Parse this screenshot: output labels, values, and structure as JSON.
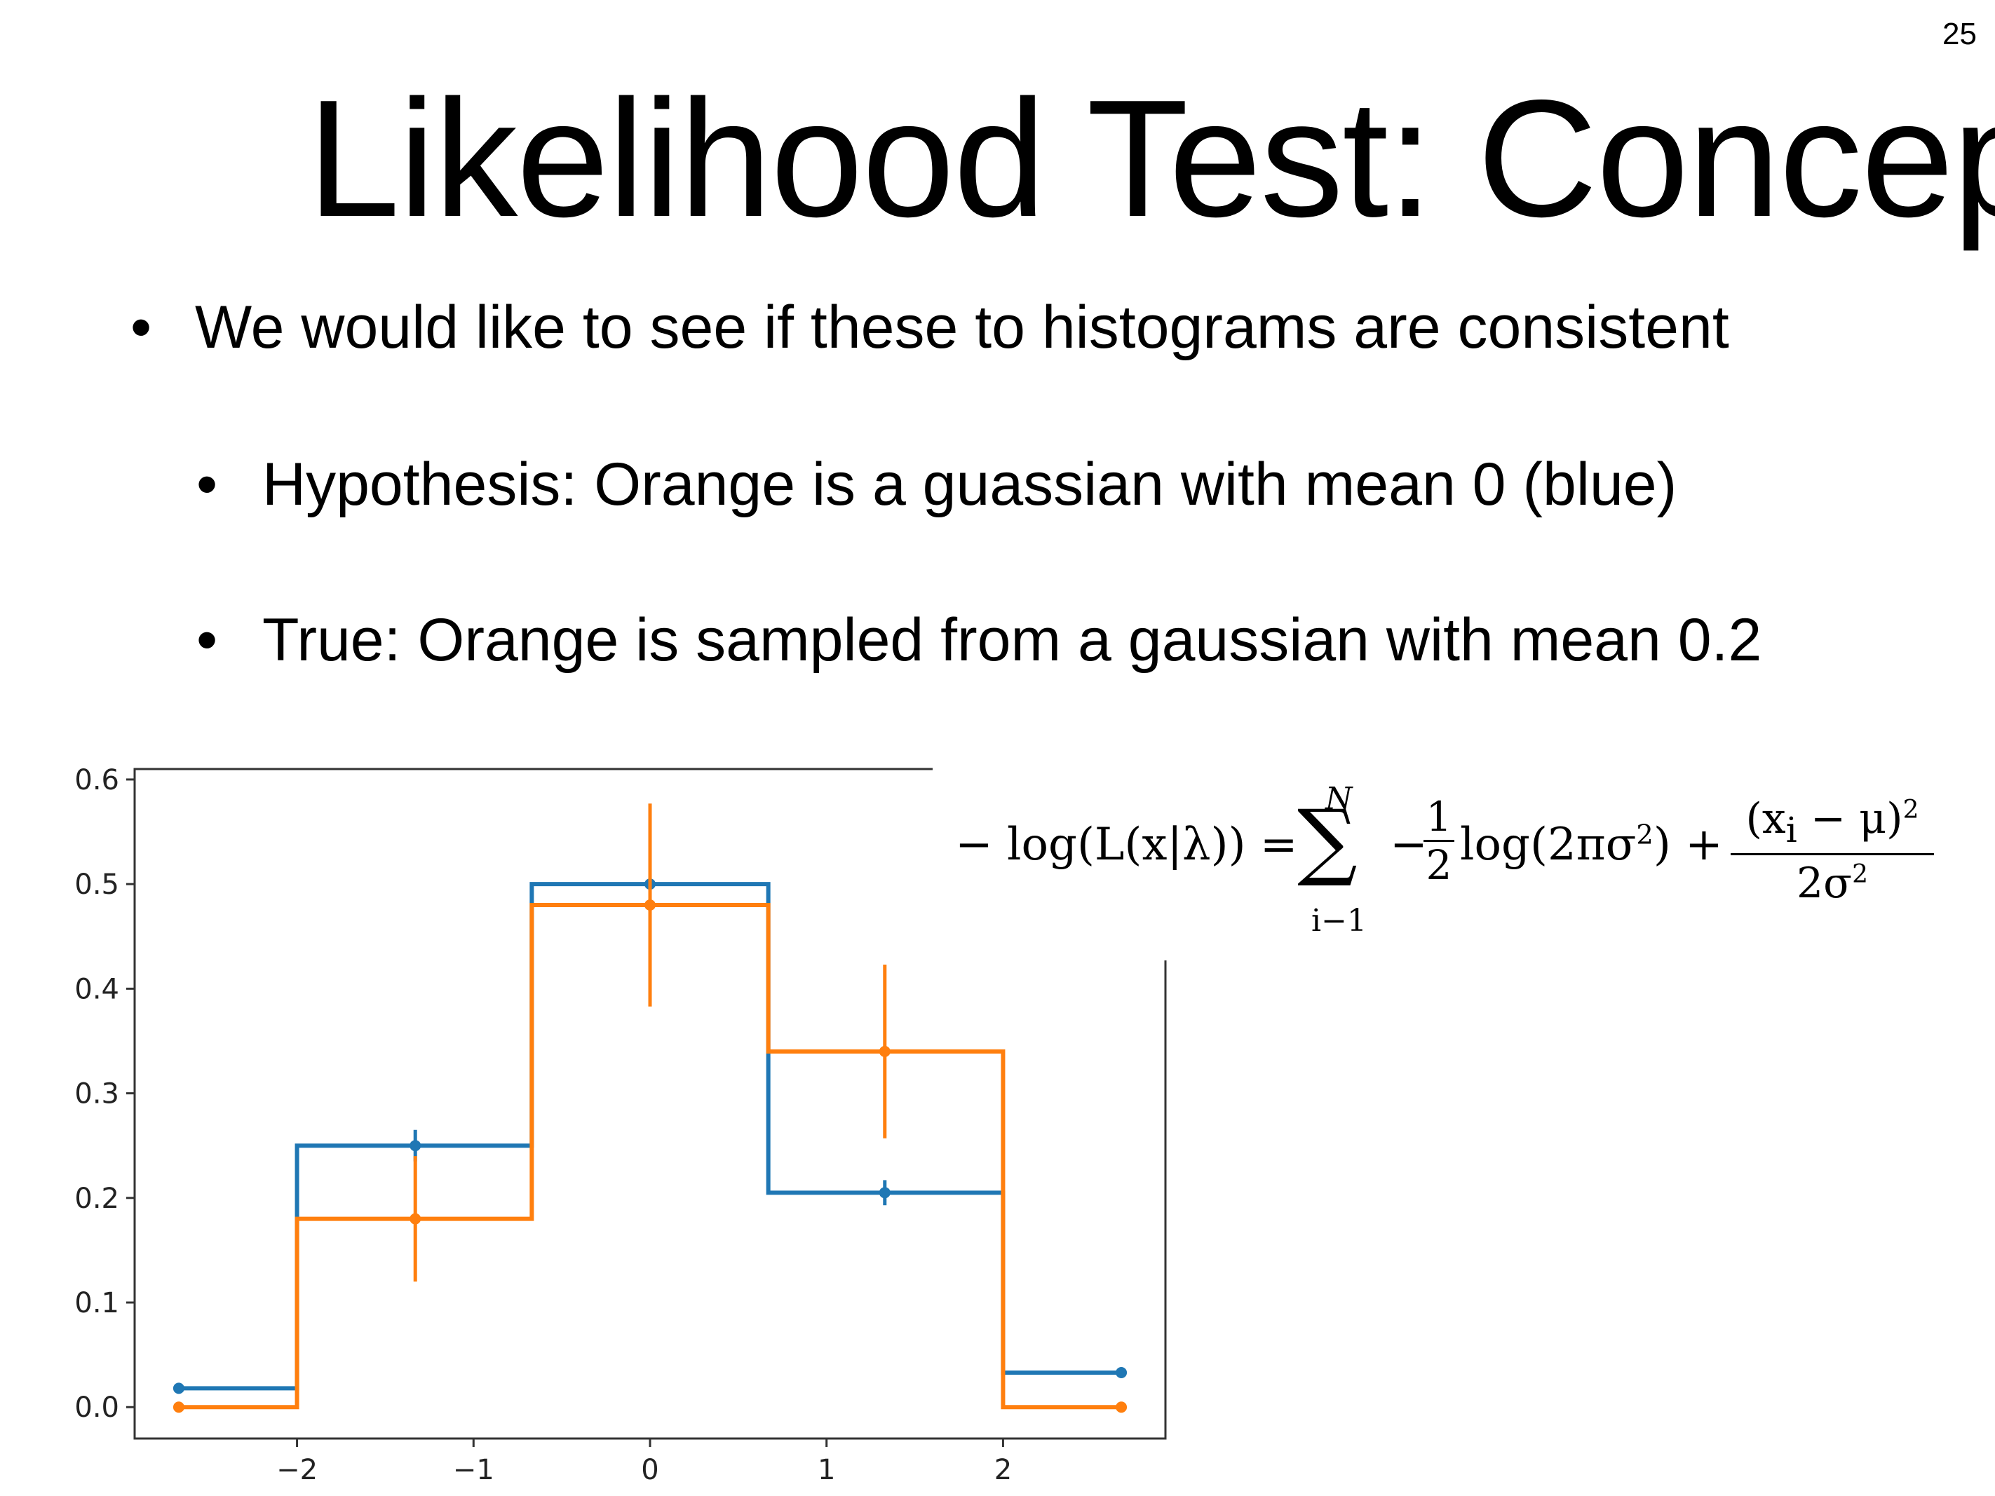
{
  "slide": {
    "page_number": "25",
    "title": "Likelihood Test: Concept",
    "bullets": [
      "We would like to see if these to histograms are consistent",
      "Hypothesis: Orange is a guassian with mean 0 (blue)",
      "True: Orange is sampled from a gaussian with mean 0.2"
    ],
    "bullet_glyph": "•"
  },
  "formula": {
    "lhs": "− log(L(x|λ)) =",
    "sum_upper": "N",
    "sum_lower": "i−1",
    "minus": "−",
    "half_num": "1",
    "half_den": "2",
    "log_term": "log(2πσ",
    "log_sup": "2",
    "log_close": ") +",
    "frac_num": "(x",
    "frac_num_sub": "i",
    "frac_num_rest": " − μ)",
    "frac_num_sup": "2",
    "frac_den": "2σ",
    "frac_den_sup": "2"
  },
  "chart_data": {
    "type": "histogram",
    "x_ticks": [
      -2,
      -1,
      0,
      1,
      2
    ],
    "x_tick_labels": [
      "−2",
      "−1",
      "0",
      "1",
      "2"
    ],
    "y_ticks": [
      0.0,
      0.1,
      0.2,
      0.3,
      0.4,
      0.5,
      0.6
    ],
    "y_tick_labels": [
      "0.0",
      "0.1",
      "0.2",
      "0.3",
      "0.4",
      "0.5",
      "0.6"
    ],
    "xlim": [
      -2.92,
      2.92
    ],
    "ylim": [
      -0.03,
      0.61
    ],
    "bin_edges": [
      -2.67,
      -2.0,
      -0.67,
      0.67,
      2.0,
      2.67
    ],
    "bin_centers": [
      -2.67,
      -1.33,
      0.0,
      1.33,
      2.67
    ],
    "series": [
      {
        "color": "#1f77b4",
        "values": [
          0.018,
          0.25,
          0.5,
          0.205,
          0.033
        ],
        "errors": [
          0.003,
          0.015,
          0.02,
          0.012,
          0.004
        ]
      },
      {
        "color": "#ff7f0e",
        "values": [
          0.0,
          0.18,
          0.48,
          0.34,
          0.0
        ],
        "errors": [
          0.0,
          0.06,
          0.097,
          0.083,
          0.0
        ]
      }
    ]
  }
}
